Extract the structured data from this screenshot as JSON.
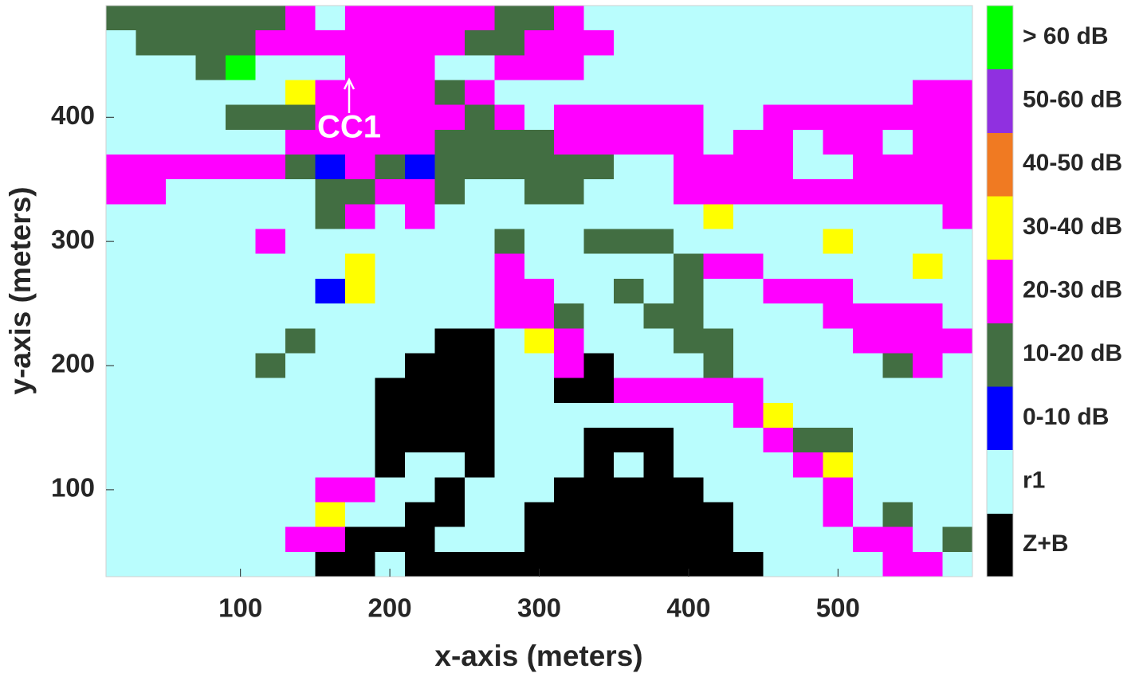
{
  "chart_data": {
    "type": "heatmap",
    "x_label": "x-axis (meters)",
    "y_label": "y-axis (meters)",
    "xlim": [
      10,
      590
    ],
    "ylim": [
      30,
      490
    ],
    "xticks": [
      100,
      200,
      300,
      400,
      500
    ],
    "yticks": [
      100,
      200,
      300,
      400
    ],
    "x": [
      20,
      40,
      60,
      80,
      100,
      120,
      140,
      160,
      180,
      200,
      220,
      240,
      260,
      280,
      300,
      320,
      340,
      360,
      380,
      400,
      420,
      440,
      460,
      480,
      500,
      520,
      540,
      560,
      580
    ],
    "y": [
      480,
      460,
      440,
      420,
      400,
      380,
      360,
      340,
      320,
      300,
      280,
      260,
      240,
      220,
      200,
      180,
      160,
      140,
      120,
      100,
      80,
      60,
      40
    ],
    "classes": [
      "Z+B",
      "r1",
      "0-10 dB",
      "10-20 dB",
      "20-30 dB",
      "30-40 dB",
      "40-50 dB",
      "50-60 dB",
      "> 60 dB"
    ],
    "class_colors": [
      "#000000",
      "#b9fdfd",
      "#0000ff",
      "#426e42",
      "#ff00ff",
      "#ffff00",
      "#f07a22",
      "#9030e0",
      "#00ff00"
    ],
    "annotation": "CC1",
    "z": [
      [
        3,
        3,
        3,
        3,
        3,
        3,
        4,
        1,
        4,
        4,
        4,
        4,
        4,
        3,
        3,
        4,
        1,
        1,
        1,
        1,
        1,
        1,
        1,
        1,
        1,
        1,
        1,
        1,
        1
      ],
      [
        1,
        3,
        3,
        3,
        3,
        4,
        4,
        4,
        4,
        4,
        4,
        4,
        3,
        3,
        4,
        4,
        4,
        1,
        1,
        1,
        1,
        1,
        1,
        1,
        1,
        1,
        1,
        1,
        1
      ],
      [
        1,
        1,
        1,
        3,
        8,
        1,
        1,
        1,
        4,
        4,
        4,
        1,
        1,
        4,
        4,
        4,
        1,
        1,
        1,
        1,
        1,
        1,
        1,
        1,
        1,
        1,
        1,
        1,
        1
      ],
      [
        1,
        1,
        1,
        1,
        1,
        1,
        5,
        4,
        4,
        4,
        4,
        3,
        4,
        1,
        1,
        1,
        1,
        1,
        1,
        1,
        1,
        1,
        1,
        1,
        1,
        1,
        1,
        4,
        4
      ],
      [
        1,
        1,
        1,
        1,
        3,
        3,
        3,
        4,
        4,
        4,
        4,
        4,
        3,
        4,
        1,
        4,
        4,
        4,
        4,
        4,
        1,
        1,
        4,
        4,
        4,
        4,
        4,
        4,
        4
      ],
      [
        1,
        1,
        1,
        1,
        1,
        1,
        4,
        4,
        4,
        4,
        4,
        3,
        3,
        3,
        3,
        4,
        4,
        4,
        4,
        4,
        1,
        4,
        4,
        1,
        4,
        4,
        1,
        4,
        4
      ],
      [
        4,
        4,
        4,
        4,
        4,
        4,
        3,
        2,
        4,
        3,
        2,
        3,
        3,
        3,
        3,
        3,
        3,
        1,
        1,
        4,
        4,
        4,
        4,
        1,
        1,
        4,
        4,
        4,
        4
      ],
      [
        4,
        4,
        1,
        1,
        1,
        1,
        1,
        3,
        3,
        4,
        4,
        3,
        1,
        1,
        3,
        3,
        1,
        1,
        1,
        4,
        4,
        4,
        4,
        4,
        4,
        4,
        4,
        4,
        4
      ],
      [
        1,
        1,
        1,
        1,
        1,
        1,
        1,
        3,
        4,
        1,
        4,
        1,
        1,
        1,
        1,
        1,
        1,
        1,
        1,
        1,
        5,
        1,
        1,
        1,
        1,
        1,
        1,
        1,
        4
      ],
      [
        1,
        1,
        1,
        1,
        1,
        4,
        1,
        1,
        1,
        1,
        1,
        1,
        1,
        3,
        1,
        1,
        3,
        3,
        3,
        1,
        1,
        1,
        1,
        1,
        5,
        1,
        1,
        1,
        1
      ],
      [
        1,
        1,
        1,
        1,
        1,
        1,
        1,
        1,
        5,
        1,
        1,
        1,
        1,
        4,
        1,
        1,
        1,
        1,
        1,
        3,
        4,
        4,
        1,
        1,
        1,
        1,
        1,
        5,
        1
      ],
      [
        1,
        1,
        1,
        1,
        1,
        1,
        1,
        2,
        5,
        1,
        1,
        1,
        1,
        4,
        4,
        1,
        1,
        3,
        1,
        3,
        1,
        1,
        4,
        4,
        4,
        1,
        1,
        1,
        1
      ],
      [
        1,
        1,
        1,
        1,
        1,
        1,
        1,
        1,
        1,
        1,
        1,
        1,
        1,
        4,
        4,
        3,
        1,
        1,
        3,
        3,
        1,
        1,
        1,
        1,
        4,
        4,
        4,
        4,
        1
      ],
      [
        1,
        1,
        1,
        1,
        1,
        1,
        3,
        1,
        1,
        1,
        1,
        0,
        0,
        1,
        5,
        4,
        1,
        1,
        1,
        3,
        3,
        1,
        1,
        1,
        1,
        4,
        4,
        4,
        4
      ],
      [
        1,
        1,
        1,
        1,
        1,
        3,
        1,
        1,
        1,
        1,
        0,
        0,
        0,
        1,
        1,
        4,
        0,
        1,
        1,
        1,
        3,
        1,
        1,
        1,
        1,
        1,
        3,
        4,
        1
      ],
      [
        1,
        1,
        1,
        1,
        1,
        1,
        1,
        1,
        1,
        0,
        0,
        0,
        0,
        1,
        1,
        0,
        0,
        4,
        4,
        4,
        4,
        4,
        1,
        1,
        1,
        1,
        1,
        1,
        1
      ],
      [
        1,
        1,
        1,
        1,
        1,
        1,
        1,
        1,
        1,
        0,
        0,
        0,
        0,
        1,
        1,
        1,
        1,
        1,
        1,
        1,
        1,
        4,
        5,
        1,
        1,
        1,
        1,
        1,
        1
      ],
      [
        1,
        1,
        1,
        1,
        1,
        1,
        1,
        1,
        1,
        0,
        0,
        0,
        0,
        1,
        1,
        1,
        0,
        0,
        0,
        1,
        1,
        1,
        4,
        3,
        3,
        1,
        1,
        1,
        1
      ],
      [
        1,
        1,
        1,
        1,
        1,
        1,
        1,
        1,
        1,
        0,
        1,
        1,
        0,
        1,
        1,
        1,
        0,
        1,
        0,
        1,
        1,
        1,
        1,
        4,
        5,
        1,
        1,
        1,
        1
      ],
      [
        1,
        1,
        1,
        1,
        1,
        1,
        1,
        4,
        4,
        1,
        1,
        0,
        1,
        1,
        1,
        0,
        0,
        0,
        0,
        0,
        1,
        1,
        1,
        1,
        4,
        1,
        1,
        1,
        1
      ],
      [
        1,
        1,
        1,
        1,
        1,
        1,
        1,
        5,
        1,
        1,
        0,
        0,
        1,
        1,
        0,
        0,
        0,
        0,
        0,
        0,
        0,
        1,
        1,
        1,
        4,
        1,
        3,
        1,
        1
      ],
      [
        1,
        1,
        1,
        1,
        1,
        1,
        4,
        4,
        0,
        0,
        0,
        1,
        1,
        1,
        0,
        0,
        0,
        0,
        0,
        0,
        0,
        1,
        1,
        1,
        1,
        4,
        4,
        1,
        3
      ],
      [
        1,
        1,
        1,
        1,
        1,
        1,
        1,
        0,
        0,
        1,
        0,
        0,
        0,
        0,
        0,
        0,
        0,
        0,
        0,
        0,
        0,
        0,
        1,
        1,
        1,
        1,
        4,
        4,
        1
      ]
    ]
  }
}
